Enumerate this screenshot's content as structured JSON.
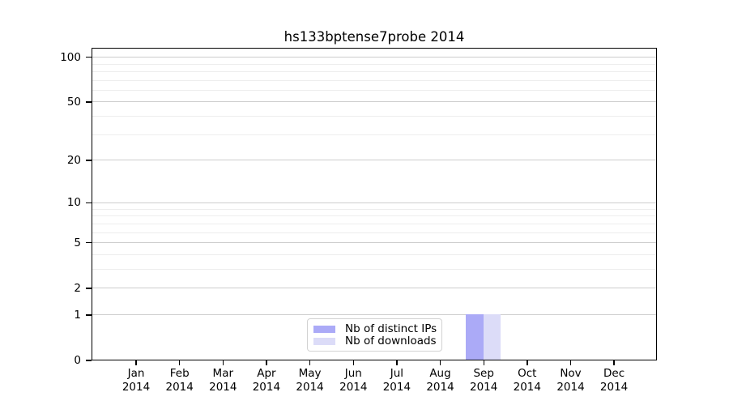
{
  "chart_data": {
    "type": "bar",
    "title": "hs133bptense7probe 2014",
    "categories": [
      "Jan 2014",
      "Feb 2014",
      "Mar 2014",
      "Apr 2014",
      "May 2014",
      "Jun 2014",
      "Jul 2014",
      "Aug 2014",
      "Sep 2014",
      "Oct 2014",
      "Nov 2014",
      "Dec 2014"
    ],
    "series": [
      {
        "name": "Nb of distinct IPs",
        "color": "#abaaf7",
        "values": [
          0,
          0,
          0,
          0,
          0,
          0,
          0,
          0,
          1,
          0,
          0,
          0
        ]
      },
      {
        "name": "Nb of downloads",
        "color": "#dcdcf8",
        "values": [
          0,
          0,
          0,
          0,
          0,
          0,
          0,
          0,
          1,
          0,
          0,
          0
        ]
      }
    ],
    "xlabel": "",
    "ylabel": "",
    "yscale": "log1p",
    "ylim": [
      0,
      100
    ],
    "y_major_ticks": [
      0,
      1,
      2,
      5,
      10,
      20,
      50,
      100
    ],
    "y_minor_gridlines": [
      3,
      4,
      6,
      7,
      8,
      9,
      30,
      40,
      60,
      70,
      80,
      90
    ],
    "grid": "horizontal",
    "legend_position": "inside-bottom-center",
    "colors": {
      "major_grid": "#cdcdcd",
      "minor_grid": "#ededed",
      "axis": "#000000",
      "text": "#000000",
      "background": "#ffffff"
    }
  }
}
